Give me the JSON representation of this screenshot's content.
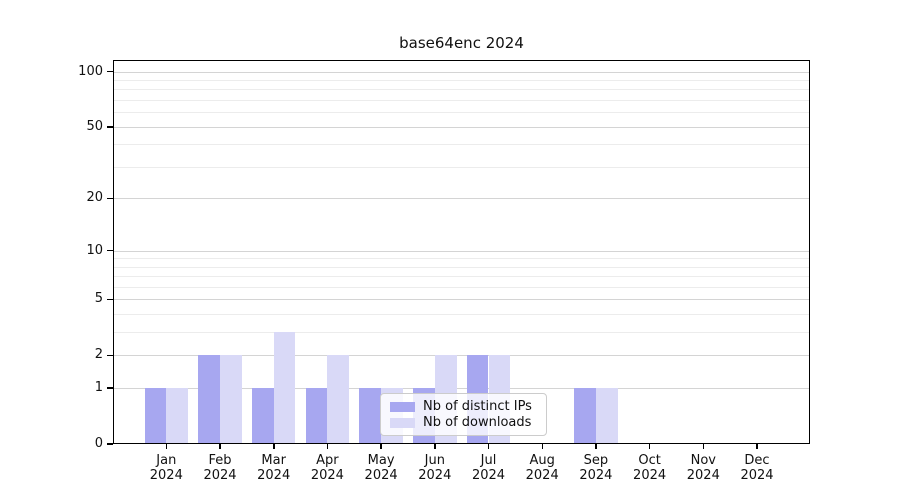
{
  "chart_data": {
    "type": "bar",
    "title": "base64enc 2024",
    "categories": [
      "Jan",
      "Feb",
      "Mar",
      "Apr",
      "May",
      "Jun",
      "Jul",
      "Aug",
      "Sep",
      "Oct",
      "Nov",
      "Dec"
    ],
    "year_label": "2024",
    "series": [
      {
        "name": "Nb of distinct IPs",
        "color": "#a7a7f0",
        "values": [
          1,
          2,
          1,
          1,
          1,
          1,
          2,
          0,
          1,
          0,
          0,
          0
        ]
      },
      {
        "name": "Nb of downloads",
        "color": "#d9d9f7",
        "values": [
          1,
          2,
          3,
          2,
          1,
          2,
          2,
          0,
          1,
          0,
          0,
          0
        ]
      }
    ],
    "y_scale": "log1p",
    "y_axis_ticks": [
      0,
      1,
      2,
      5,
      10,
      20,
      50,
      100
    ],
    "y_minor_gridlines": [
      3,
      4,
      6,
      7,
      8,
      9,
      30,
      40,
      60,
      70,
      80,
      90
    ],
    "ylim": [
      0,
      115
    ],
    "xlabel": "",
    "ylabel": "",
    "grid": true,
    "legend_position": "lower center"
  },
  "colors": {
    "background": "#ffffff",
    "spine": "#000000",
    "grid_major": "#d4d4d4",
    "grid_minor": "#ececec",
    "legend_border": "#cccccc"
  }
}
